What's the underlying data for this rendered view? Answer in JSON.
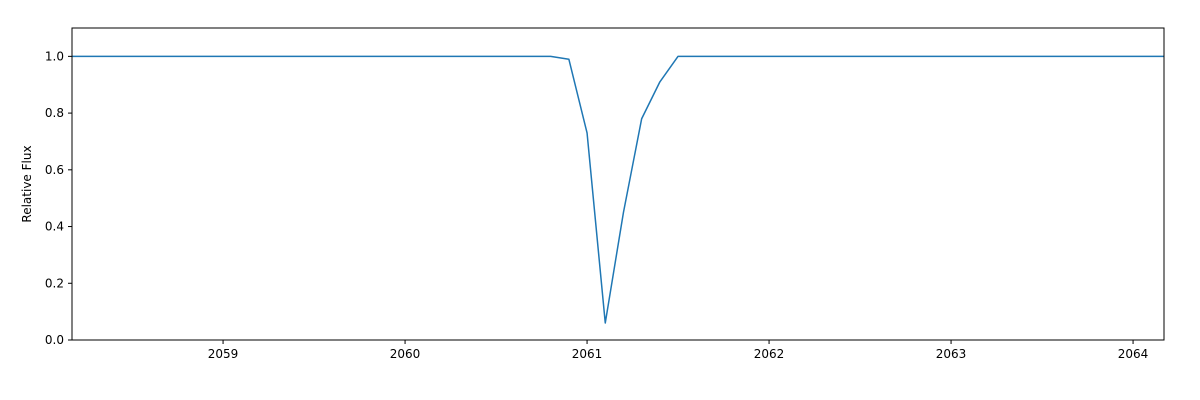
{
  "chart_data": {
    "type": "line",
    "title": "",
    "xlabel": "",
    "ylabel": "Relative Flux",
    "xlim": [
      2058.17,
      2064.17
    ],
    "ylim": [
      0.0,
      1.1
    ],
    "x_ticks": [
      2059,
      2060,
      2061,
      2062,
      2063,
      2064
    ],
    "y_ticks": [
      0.0,
      0.2,
      0.4,
      0.6,
      0.8,
      1.0
    ],
    "x_tick_labels": [
      "2059",
      "2060",
      "2061",
      "2062",
      "2063",
      "2064"
    ],
    "y_tick_labels": [
      "0.0",
      "0.2",
      "0.4",
      "0.6",
      "0.8",
      "1.0"
    ],
    "grid": false,
    "legend": "none",
    "series": [
      {
        "color": "#1f77b4",
        "x": [
          2058.17,
          2058.5,
          2059.0,
          2059.5,
          2060.0,
          2060.5,
          2060.8,
          2060.9,
          2061.0,
          2061.1,
          2061.2,
          2061.3,
          2061.4,
          2061.5,
          2061.6,
          2062.0,
          2062.5,
          2063.0,
          2063.5,
          2064.0,
          2064.17
        ],
        "y": [
          1.0,
          1.0,
          1.0,
          1.0,
          1.0,
          1.0,
          1.0,
          0.99,
          0.73,
          0.06,
          0.45,
          0.78,
          0.91,
          1.0,
          1.0,
          1.0,
          1.0,
          1.0,
          1.0,
          1.0,
          1.0
        ]
      }
    ]
  }
}
